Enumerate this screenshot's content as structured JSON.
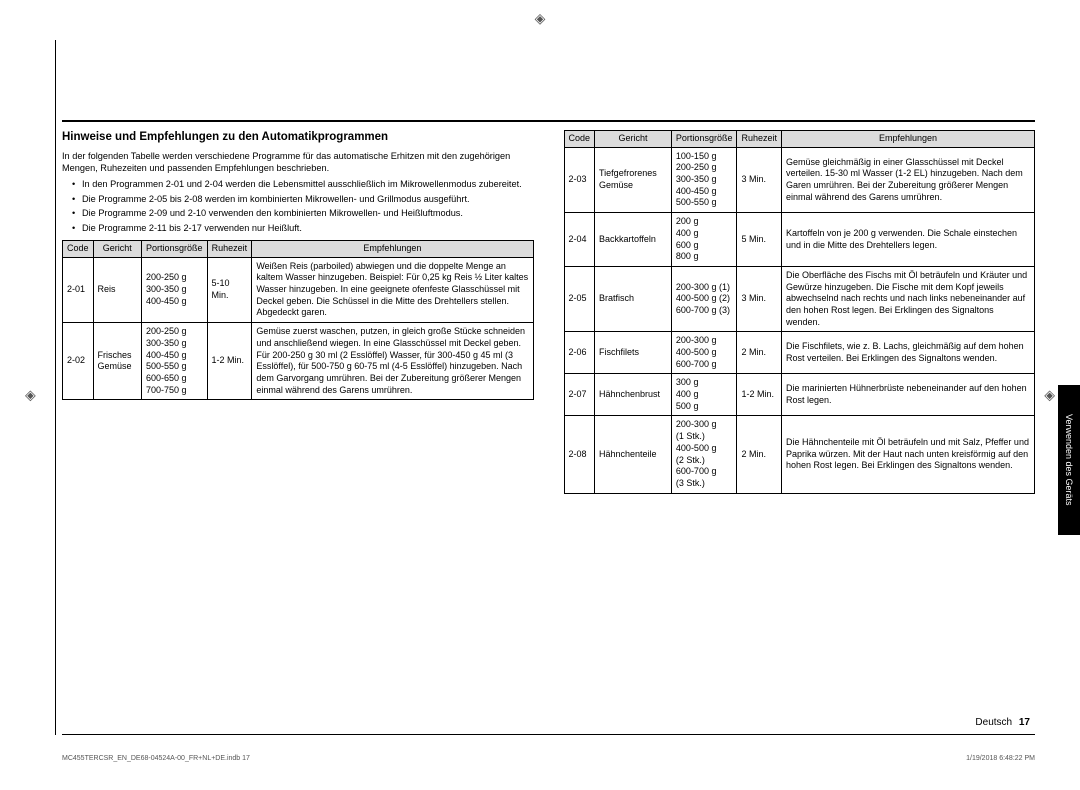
{
  "marks": {
    "glyph": "◈"
  },
  "heading": "Hinweise und Empfehlungen zu den Automatikprogrammen",
  "intro": "In der folgenden Tabelle werden verschiedene Programme für das automatische Erhitzen mit den zugehörigen Mengen, Ruhezeiten und passenden Empfehlungen beschrieben.",
  "bullets": [
    "In den Programmen 2-01 und 2-04 werden die Lebensmittel ausschließlich im Mikrowellenmodus zubereitet.",
    "Die Programme 2-05 bis 2-08 werden im kombinierten Mikrowellen- und Grillmodus ausgeführt.",
    "Die Programme 2-09 und 2-10 verwenden den kombinierten Mikrowellen- und Heißluftmodus.",
    "Die Programme 2-11 bis 2-17 verwenden nur Heißluft."
  ],
  "columns": {
    "code": "Code",
    "gericht": "Gericht",
    "portion": "Portionsgröße",
    "ruhe": "Ruhezeit",
    "empf": "Empfehlungen"
  },
  "left_rows": [
    {
      "code": "2-01",
      "gericht": "Reis",
      "portion": "200-250 g\n300-350 g\n400-450 g",
      "ruhe": "5-10 Min.",
      "empf": "Weißen Reis (parboiled) abwiegen und die doppelte Menge an kaltem Wasser hinzugeben. Beispiel: Für 0,25 kg Reis ½ Liter kaltes Wasser hinzugeben.\nIn eine geeignete ofenfeste Glasschüssel mit Deckel geben. Die Schüssel in die Mitte des Drehtellers stellen. Abgedeckt garen."
    },
    {
      "code": "2-02",
      "gericht": "Frisches Gemüse",
      "portion": "200-250 g\n300-350 g\n400-450 g\n500-550 g\n600-650 g\n700-750 g",
      "ruhe": "1-2 Min.",
      "empf": "Gemüse zuerst waschen, putzen, in gleich große Stücke schneiden und anschließend wiegen.\nIn eine Glasschüssel mit Deckel geben. Für 200-250 g 30 ml (2 Esslöffel) Wasser, für 300-450 g 45 ml (3 Esslöffel), für 500-750 g 60-75 ml (4-5 Esslöffel) hinzugeben. Nach dem Garvorgang umrühren. Bei der Zubereitung größerer Mengen einmal während des Garens umrühren."
    }
  ],
  "right_rows": [
    {
      "code": "2-03",
      "gericht": "Tiefgefrorenes Gemüse",
      "portion": "100-150 g\n200-250 g\n300-350 g\n400-450 g\n500-550 g",
      "ruhe": "3 Min.",
      "empf": "Gemüse gleichmäßig in einer Glasschüssel mit Deckel verteilen. 15-30 ml Wasser (1-2 EL) hinzugeben. Nach dem Garen umrühren. Bei der Zubereitung größerer Mengen einmal während des Garens umrühren."
    },
    {
      "code": "2-04",
      "gericht": "Backkartoffeln",
      "portion": "200 g\n400 g\n600 g\n800 g",
      "ruhe": "5 Min.",
      "empf": "Kartoffeln von je 200 g verwenden. Die Schale einstechen und in die Mitte des Drehtellers legen."
    },
    {
      "code": "2-05",
      "gericht": "Bratfisch",
      "portion": "200-300 g (1)\n400-500 g (2)\n600-700 g (3)",
      "ruhe": "3 Min.",
      "empf": "Die Oberfläche des Fischs mit Öl beträufeln und Kräuter und Gewürze hinzugeben. Die Fische mit dem Kopf jeweils abwechselnd nach rechts und nach links nebeneinander auf den hohen Rost legen. Bei Erklingen des Signaltons wenden."
    },
    {
      "code": "2-06",
      "gericht": "Fischfilets",
      "portion": "200-300 g\n400-500 g\n600-700 g",
      "ruhe": "2 Min.",
      "empf": "Die Fischfilets, wie z. B. Lachs, gleichmäßig auf dem hohen Rost verteilen. Bei Erklingen des Signaltons wenden."
    },
    {
      "code": "2-07",
      "gericht": "Hähnchenbrust",
      "portion": "300 g\n400 g\n500 g",
      "ruhe": "1-2 Min.",
      "empf": "Die marinierten Hühnerbrüste nebeneinander auf den hohen Rost legen."
    },
    {
      "code": "2-08",
      "gericht": "Hähnchenteile",
      "portion": "200-300 g\n(1 Stk.)\n400-500 g\n(2 Stk.)\n600-700 g\n(3 Stk.)",
      "ruhe": "2 Min.",
      "empf": "Die Hähnchenteile mit Öl beträufeln und mit Salz, Pfeffer und Paprika würzen. Mit der Haut nach unten kreisförmig auf den hohen Rost legen. Bei Erklingen des Signaltons wenden."
    }
  ],
  "side_tab": "Verwenden des Geräts",
  "footer_lang": "Deutsch",
  "footer_page": "17",
  "print_file": "MC455TERCSR_EN_DE68-04524A-00_FR+NL+DE.indb   17",
  "print_time": "1/19/2018   6:48:22 PM"
}
